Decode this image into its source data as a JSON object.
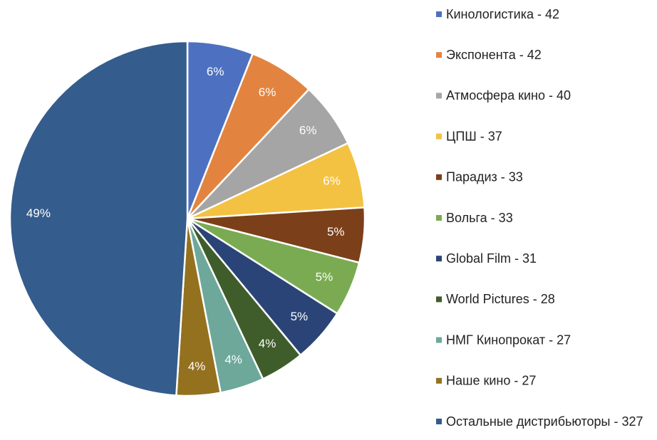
{
  "chart_data": {
    "type": "pie",
    "categories": [
      "Кинологистика - 42",
      "Экспонента - 42",
      "Атмосфера кино - 40",
      "ЦПШ - 37",
      "Парадиз - 33",
      "Вольга - 33",
      "Global Film - 31",
      "World Pictures - 28",
      "НМГ Кинопрокат - 27",
      "Наше кино - 27",
      "Остальные дистрибьюторы - 327"
    ],
    "values": [
      6,
      6,
      6,
      6,
      5,
      5,
      5,
      4,
      4,
      4,
      49
    ],
    "value_labels": [
      "6%",
      "6%",
      "6%",
      "6%",
      "5%",
      "5%",
      "5%",
      "4%",
      "4%",
      "4%",
      "49%"
    ],
    "colors": [
      "#4d71c0",
      "#e2843f",
      "#a5a5a5",
      "#f4c242",
      "#7b3f19",
      "#7aab52",
      "#2b4477",
      "#3f5d2b",
      "#6da89b",
      "#94711f",
      "#345c8c"
    ],
    "legend": "right"
  }
}
